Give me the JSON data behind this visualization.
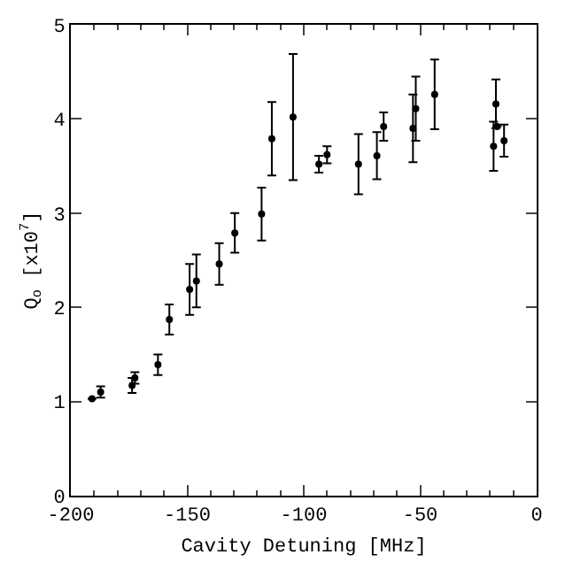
{
  "chart_data": {
    "type": "scatter",
    "xlabel": "Cavity Detuning [MHz]",
    "ylabel": "Q$_{o}$ [x10$^{7}$]",
    "x": [
      -190.9,
      -187.2,
      -173.7,
      -172.5,
      -162.6,
      -157.7,
      -149,
      -146.1,
      -136.3,
      -129.6,
      -118.1,
      -113.7,
      -104.6,
      -93.5,
      -90,
      -76.5,
      -68.6,
      -65.7,
      -53.1,
      -51.9,
      -43.8,
      -18.5,
      -17.5,
      -17,
      -14
    ],
    "values": [
      1.03,
      1.1,
      1.17,
      1.25,
      1.39,
      1.87,
      2.19,
      2.28,
      2.46,
      2.79,
      2.99,
      3.79,
      4.02,
      3.52,
      3.62,
      3.52,
      3.61,
      3.92,
      3.9,
      4.11,
      4.26,
      3.71,
      4.16,
      3.92,
      3.77
    ],
    "errors": [
      null,
      0.06,
      0.08,
      0.06,
      0.11,
      0.16,
      0.27,
      0.28,
      0.22,
      0.21,
      0.28,
      0.39,
      0.67,
      0.09,
      0.09,
      0.32,
      0.25,
      0.15,
      0.36,
      0.34,
      0.37,
      0.26,
      0.26,
      null,
      0.17
    ],
    "color": "#000000",
    "marker": "circle",
    "xlim": [
      -200,
      0
    ],
    "xticks": [
      -200,
      -150,
      -100,
      -50,
      0
    ],
    "ylim": [
      0,
      5
    ],
    "yticks": [
      0,
      1,
      2,
      3,
      4,
      5
    ],
    "grid": false
  }
}
